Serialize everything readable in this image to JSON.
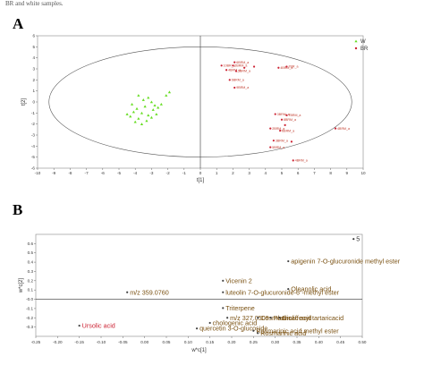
{
  "caption_fragment": "BR and white samples.",
  "colors": {
    "w": "#66dd22",
    "br": "#cc2233",
    "label_brown": "#7a5112",
    "ursolic_red": "#cc2233",
    "axis": "#666666"
  },
  "chart_data": [
    {
      "panel": "A",
      "type": "scatter",
      "xlabel": "t[1]",
      "ylabel": "t[2]",
      "xlim": [
        -10,
        10
      ],
      "ylim": [
        -6,
        6
      ],
      "xticks": [
        -10,
        -9,
        -8,
        -7,
        -6,
        -5,
        -4,
        -3,
        -2,
        -1,
        0,
        1,
        2,
        3,
        4,
        5,
        6,
        7,
        8,
        9,
        10
      ],
      "yticks": [
        -6,
        -5,
        -4,
        -3,
        -2,
        -1,
        0,
        1,
        2,
        3,
        4,
        5,
        6
      ],
      "ellipse": {
        "cx": 0,
        "cy": 0,
        "rx": 9.3,
        "ry": 5.0
      },
      "legend": {
        "position": "top-right",
        "entries": [
          "W",
          "BR"
        ]
      },
      "series": [
        {
          "name": "W",
          "color": "#66dd22",
          "points": [
            [
              -3.8,
              0.6
            ],
            [
              -3.5,
              0.2
            ],
            [
              -3.2,
              0.4
            ],
            [
              -3.0,
              0.0
            ],
            [
              -2.8,
              -0.3
            ],
            [
              -3.4,
              -0.4
            ],
            [
              -3.9,
              -0.6
            ],
            [
              -4.1,
              -0.9
            ],
            [
              -3.6,
              -1.0
            ],
            [
              -3.2,
              -1.2
            ],
            [
              -2.9,
              -0.7
            ],
            [
              -2.6,
              -0.5
            ],
            [
              -4.3,
              -1.3
            ],
            [
              -3.8,
              -1.5
            ],
            [
              -3.3,
              -1.7
            ],
            [
              -4.5,
              -1.1
            ],
            [
              -2.4,
              -0.2
            ],
            [
              -3.0,
              -1.4
            ],
            [
              -2.1,
              0.6
            ],
            [
              -1.9,
              0.9
            ],
            [
              -4.0,
              -1.8
            ],
            [
              -3.6,
              -2.0
            ],
            [
              -2.7,
              -1.1
            ],
            [
              -4.2,
              -0.2
            ]
          ],
          "labels": []
        },
        {
          "name": "BR",
          "color": "#cc2233",
          "points": [
            [
              1.3,
              3.3
            ],
            [
              2.0,
              3.3
            ],
            [
              1.6,
              2.9
            ],
            [
              2.2,
              2.8
            ],
            [
              2.7,
              3.1
            ],
            [
              3.3,
              3.2
            ],
            [
              2.1,
              3.6
            ],
            [
              1.8,
              2.0
            ],
            [
              2.1,
              1.3
            ],
            [
              4.8,
              3.1
            ],
            [
              5.3,
              3.2
            ],
            [
              4.6,
              -1.1
            ],
            [
              5.3,
              -1.2
            ],
            [
              5.0,
              -1.6
            ],
            [
              4.3,
              -2.4
            ],
            [
              4.9,
              -2.6
            ],
            [
              5.2,
              -2.1
            ],
            [
              4.5,
              -3.5
            ],
            [
              5.6,
              -3.6
            ],
            [
              4.3,
              -4.1
            ],
            [
              5.7,
              -5.3
            ],
            [
              8.3,
              -2.4
            ]
          ],
          "labels": [
            {
              "i": 0,
              "text": "10BR_a"
            },
            {
              "i": 1,
              "text": "2BRM_a"
            },
            {
              "i": 2,
              "text": "4BRM_a"
            },
            {
              "i": 3,
              "text": "5BRM_a"
            },
            {
              "i": 6,
              "text": "6BRM_a"
            },
            {
              "i": 7,
              "text": "6BRM_a"
            },
            {
              "i": 8,
              "text": "9BRM_a"
            },
            {
              "i": 9,
              "text": "4BRM_a"
            },
            {
              "i": 10,
              "text": "7BR_a"
            },
            {
              "i": 11,
              "text": "3BRM_a"
            },
            {
              "i": 12,
              "text": "7BRM_a"
            },
            {
              "i": 13,
              "text": "8BRM_a"
            },
            {
              "i": 14,
              "text": "2BRM_a"
            },
            {
              "i": 15,
              "text": "6BRM_a"
            },
            {
              "i": 17,
              "text": "3BRM_a"
            },
            {
              "i": 19,
              "text": "5BRM_a"
            },
            {
              "i": 20,
              "text": "4BRM_a"
            },
            {
              "i": 21,
              "text": "4BRM_a"
            }
          ]
        }
      ]
    },
    {
      "panel": "B",
      "type": "scatter",
      "xlabel": "w*c[1]",
      "ylabel": "w*c[2]",
      "xlim": [
        -0.25,
        0.5
      ],
      "ylim": [
        -0.4,
        0.7
      ],
      "xticks": [
        -0.25,
        -0.2,
        -0.15,
        -0.1,
        -0.05,
        0.0,
        0.05,
        0.1,
        0.15,
        0.2,
        0.25,
        0.3,
        0.35,
        0.4,
        0.45,
        0.5
      ],
      "xtick_labels": [
        "-0.25",
        "-0.20",
        "-0.15",
        "-0.10",
        "-0.05",
        "0.00",
        "0.05",
        "0.10",
        "0.15",
        "0.20",
        "0.25",
        "0.30",
        "0.35",
        "0.40",
        "0.45",
        "0.50"
      ],
      "yticks": [
        -0.3,
        -0.2,
        -0.1,
        0.0,
        0.1,
        0.2,
        0.3,
        0.4,
        0.5,
        0.6
      ],
      "ytick_labels": [
        "-0.3",
        "-0.2",
        "-0.1",
        "-0.0",
        "0.1",
        "0.2",
        "0.3",
        "0.4",
        "0.5",
        "0.6"
      ],
      "points": [
        {
          "x": 0.48,
          "y": 0.65,
          "label": "5",
          "color": "#333333"
        },
        {
          "x": 0.33,
          "y": 0.41,
          "label": "apigenin 7-O-glucuronide methyl ester",
          "color": "#7a5112"
        },
        {
          "x": 0.18,
          "y": 0.2,
          "label": "Vicenin 2",
          "color": "#7a5112"
        },
        {
          "x": 0.33,
          "y": 0.11,
          "label": "Oleanolic acid",
          "color": "#7a5112"
        },
        {
          "x": 0.18,
          "y": 0.075,
          "label": "luteolin 7-O-glucuronide-6″-methyl ester",
          "color": "#7a5112"
        },
        {
          "x": -0.04,
          "y": 0.075,
          "label": "m/z 359.0760",
          "color": "#7a5112"
        },
        {
          "x": 0.18,
          "y": -0.095,
          "label": "Triterpene",
          "color": "#7a5112"
        },
        {
          "x": 0.19,
          "y": -0.2,
          "label": "m/z 327.0509",
          "color": "#7a5112"
        },
        {
          "x": 0.26,
          "y": -0.2,
          "label": "Cosmosiin",
          "color": "#7a5112"
        },
        {
          "x": 0.29,
          "y": -0.2,
          "label": "Phenolic acid",
          "color": "#7a5112"
        },
        {
          "x": 0.31,
          "y": -0.2,
          "label": "Dicaffeoyl tartaricacid",
          "color": "#7a5112"
        },
        {
          "x": 0.15,
          "y": -0.255,
          "label": "chologenic acid",
          "color": "#7a5112"
        },
        {
          "x": 0.12,
          "y": -0.315,
          "label": "quercetin 3-O-glucoside",
          "color": "#7a5112"
        },
        {
          "x": 0.25,
          "y": -0.34,
          "label": "Rosmarinic acid methyl ester",
          "color": "#7a5112"
        },
        {
          "x": 0.26,
          "y": -0.365,
          "label": "Rosmarinic acid",
          "color": "#7a5112"
        },
        {
          "x": -0.15,
          "y": -0.285,
          "label": "Ursolic acid",
          "color": "#cc2233"
        }
      ]
    }
  ]
}
